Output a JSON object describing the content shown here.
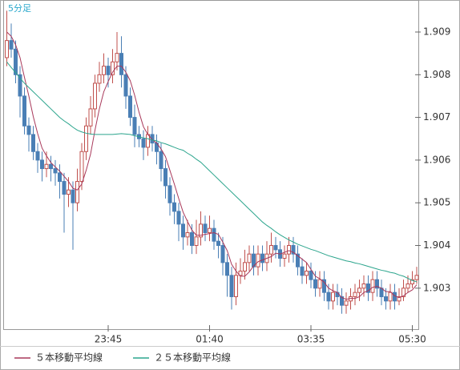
{
  "chart_data": {
    "type": "candlestick",
    "title": "5分足",
    "categories": [
      null,
      null,
      null,
      null,
      null,
      null,
      null,
      null,
      null,
      null,
      null,
      null,
      null,
      null,
      null,
      null,
      null,
      null,
      null,
      null,
      null,
      null,
      null,
      "23:45",
      null,
      null,
      null,
      null,
      null,
      null,
      null,
      null,
      null,
      null,
      null,
      null,
      null,
      null,
      null,
      null,
      null,
      null,
      null,
      null,
      null,
      null,
      "01:40",
      null,
      null,
      null,
      null,
      null,
      null,
      null,
      null,
      null,
      null,
      null,
      null,
      null,
      null,
      null,
      null,
      null,
      null,
      null,
      null,
      null,
      null,
      "03:35",
      null,
      null,
      null,
      null,
      null,
      null,
      null,
      null,
      null,
      null,
      null,
      null,
      null,
      null,
      null,
      null,
      null,
      null,
      null,
      null,
      null,
      null,
      "05:30",
      null
    ],
    "open": [
      1.9084,
      1.9088,
      1.9086,
      1.908,
      1.9075,
      1.9068,
      1.9066,
      1.9062,
      1.906,
      1.9058,
      1.9059,
      1.9058,
      1.9057,
      1.9055,
      1.9052,
      1.9053,
      1.905,
      1.9055,
      1.9062,
      1.9068,
      1.9072,
      1.9078,
      1.908,
      1.9082,
      1.908,
      1.9083,
      1.9085,
      1.908,
      1.9075,
      1.907,
      1.9066,
      1.9065,
      1.9063,
      1.9066,
      1.9064,
      1.9062,
      1.9058,
      1.9054,
      1.905,
      1.9048,
      1.9045,
      1.9042,
      1.9043,
      1.904,
      1.9042,
      1.9045,
      1.9043,
      1.9044,
      1.9041,
      1.904,
      1.9036,
      1.9033,
      1.9028,
      1.9033,
      1.9034,
      1.9036,
      1.9038,
      1.9035,
      1.9038,
      1.9036,
      1.9038,
      1.904,
      1.9039,
      1.9037,
      1.9038,
      1.904,
      1.9038,
      1.9035,
      1.9033,
      1.9034,
      1.9032,
      1.903,
      1.9032,
      1.9029,
      1.9027,
      1.9029,
      1.9028,
      1.9026,
      1.9027,
      1.9028,
      1.9029,
      1.903,
      1.9031,
      1.9029,
      1.9032,
      1.903,
      1.9028,
      1.9027,
      1.9029,
      1.9027,
      1.9028,
      1.903,
      1.9031,
      1.9032
    ],
    "high": [
      1.9095,
      1.9092,
      1.9088,
      1.9082,
      1.9077,
      1.907,
      1.9068,
      1.9064,
      1.9062,
      1.9062,
      1.9061,
      1.906,
      1.9059,
      1.9057,
      1.9056,
      1.9055,
      1.9058,
      1.9064,
      1.907,
      1.9075,
      1.908,
      1.9083,
      1.9085,
      1.9084,
      1.9086,
      1.909,
      1.9089,
      1.9082,
      1.9077,
      1.9073,
      1.9068,
      1.9067,
      1.9068,
      1.9068,
      1.9066,
      1.9064,
      1.906,
      1.9056,
      1.9052,
      1.905,
      1.9047,
      1.9046,
      1.9045,
      1.9046,
      1.9048,
      1.9047,
      1.9047,
      1.9046,
      1.9043,
      1.9042,
      1.9038,
      1.9035,
      1.9036,
      1.9037,
      1.9039,
      1.904,
      1.904,
      1.904,
      1.904,
      1.9041,
      1.9043,
      1.9042,
      1.9041,
      1.904,
      1.9042,
      1.9042,
      1.904,
      1.9037,
      1.9036,
      1.9036,
      1.9034,
      1.9034,
      1.9034,
      1.9031,
      1.9031,
      1.9031,
      1.903,
      1.9029,
      1.903,
      1.9031,
      1.9032,
      1.9033,
      1.9033,
      1.9034,
      1.9034,
      1.9032,
      1.903,
      1.9031,
      1.9031,
      1.903,
      1.9032,
      1.9033,
      1.9034,
      1.9035
    ],
    "low": [
      1.9082,
      1.9084,
      1.9078,
      1.907,
      1.9066,
      1.9062,
      1.906,
      1.9057,
      1.9055,
      1.9056,
      1.9055,
      1.9054,
      1.9051,
      1.9043,
      1.9049,
      1.9039,
      1.9048,
      1.9053,
      1.906,
      1.9066,
      1.907,
      1.9076,
      1.9078,
      1.9077,
      1.9078,
      1.9081,
      1.9077,
      1.9072,
      1.9068,
      1.9063,
      1.9063,
      1.906,
      1.9061,
      1.9062,
      1.9059,
      1.9055,
      1.9051,
      1.9047,
      1.9045,
      1.9041,
      1.9039,
      1.904,
      1.9038,
      1.9038,
      1.904,
      1.9041,
      1.9041,
      1.9039,
      1.9037,
      1.9033,
      1.9028,
      1.9025,
      1.9026,
      1.9031,
      1.9032,
      1.9034,
      1.9033,
      1.9033,
      1.9034,
      1.9034,
      1.9036,
      1.9037,
      1.9035,
      1.9035,
      1.9036,
      1.9036,
      1.9033,
      1.9031,
      1.9031,
      1.903,
      1.9028,
      1.9028,
      1.9027,
      1.9025,
      1.9025,
      1.9026,
      1.9024,
      1.9024,
      1.9025,
      1.9026,
      1.9027,
      1.9028,
      1.9027,
      1.9027,
      1.9028,
      1.9026,
      1.9025,
      1.9025,
      1.9025,
      1.9026,
      1.9027,
      1.9029,
      1.903,
      1.9031
    ],
    "close": [
      1.9088,
      1.9086,
      1.908,
      1.9075,
      1.9068,
      1.9066,
      1.9062,
      1.906,
      1.9058,
      1.9059,
      1.9058,
      1.9057,
      1.9055,
      1.9052,
      1.9053,
      1.905,
      1.9055,
      1.9062,
      1.9068,
      1.9072,
      1.9078,
      1.908,
      1.9082,
      1.908,
      1.9083,
      1.9085,
      1.908,
      1.9075,
      1.907,
      1.9066,
      1.9065,
      1.9063,
      1.9066,
      1.9064,
      1.9062,
      1.9058,
      1.9054,
      1.905,
      1.9048,
      1.9045,
      1.9042,
      1.9043,
      1.904,
      1.9042,
      1.9045,
      1.9043,
      1.9044,
      1.9041,
      1.904,
      1.9036,
      1.9033,
      1.9028,
      1.9033,
      1.9034,
      1.9036,
      1.9038,
      1.9035,
      1.9038,
      1.9036,
      1.9038,
      1.904,
      1.9039,
      1.9037,
      1.9038,
      1.904,
      1.9038,
      1.9035,
      1.9033,
      1.9034,
      1.9032,
      1.903,
      1.9032,
      1.9029,
      1.9027,
      1.9029,
      1.9028,
      1.9026,
      1.9027,
      1.9028,
      1.9029,
      1.903,
      1.9031,
      1.9029,
      1.9032,
      1.903,
      1.9028,
      1.9027,
      1.9029,
      1.9027,
      1.9028,
      1.903,
      1.9031,
      1.9032,
      1.9033
    ],
    "up_color": "#c0504d",
    "down_color": "#4a7fb5",
    "series": [
      {
        "name": "５本移動平均線",
        "color": "#a8385a",
        "values": [
          1.909,
          1.9089,
          1.9087,
          1.9084,
          1.90794,
          1.9075,
          1.90702,
          1.90662,
          1.90628,
          1.9061,
          1.90594,
          1.90584,
          1.90574,
          1.90562,
          1.9055,
          1.90534,
          1.9053,
          1.90544,
          1.90576,
          1.90614,
          1.9067,
          1.9072,
          1.9076,
          1.90784,
          1.90806,
          1.9082,
          1.9082,
          1.90806,
          1.90786,
          1.90752,
          1.90712,
          1.90678,
          1.9066,
          1.90648,
          1.9064,
          1.90626,
          1.90608,
          1.90576,
          1.90544,
          1.9051,
          1.90478,
          1.90456,
          1.90436,
          1.90424,
          1.90424,
          1.90426,
          1.90428,
          1.9043,
          1.90426,
          1.90408,
          1.90388,
          1.90356,
          1.9034,
          1.90328,
          1.90328,
          1.90338,
          1.90352,
          1.90362,
          1.90366,
          1.9037,
          1.90374,
          1.90382,
          1.9038,
          1.90384,
          1.90388,
          1.90384,
          1.90376,
          1.90368,
          1.9036,
          1.90344,
          1.90328,
          1.90322,
          1.90314,
          1.903,
          1.90294,
          1.9029,
          1.90278,
          1.90274,
          1.90276,
          1.90276,
          1.9028,
          1.9029,
          1.90294,
          1.90302,
          1.90304,
          1.903,
          1.90292,
          1.90292,
          1.90282,
          1.90278,
          1.90282,
          1.9029,
          1.90296,
          1.90308
        ]
      },
      {
        "name": "２５本移動平均線",
        "color": "#2ca58d",
        "values": [
          1.9083,
          1.90817,
          1.90805,
          1.90792,
          1.9078,
          1.9077,
          1.9076,
          1.9075,
          1.9074,
          1.9073,
          1.9072,
          1.9071,
          1.907,
          1.90692,
          1.90685,
          1.90677,
          1.9067,
          1.90666,
          1.90663,
          1.90661,
          1.9066,
          1.9066,
          1.9066,
          1.9066,
          1.9066,
          1.90661,
          1.90662,
          1.90661,
          1.9066,
          1.90657,
          1.90655,
          1.90652,
          1.9065,
          1.90647,
          1.90645,
          1.90641,
          1.90638,
          1.90634,
          1.9063,
          1.90626,
          1.90623,
          1.90616,
          1.9061,
          1.90602,
          1.90595,
          1.90585,
          1.90575,
          1.90565,
          1.90555,
          1.90545,
          1.90535,
          1.90525,
          1.90515,
          1.90505,
          1.90495,
          1.90485,
          1.90475,
          1.90465,
          1.90455,
          1.90447,
          1.9044,
          1.90432,
          1.90425,
          1.90419,
          1.90413,
          1.90408,
          1.90403,
          1.90399,
          1.90395,
          1.90391,
          1.90388,
          1.90384,
          1.9038,
          1.90376,
          1.90373,
          1.9037,
          1.90367,
          1.90364,
          1.90362,
          1.90359,
          1.90357,
          1.90354,
          1.90351,
          1.90348,
          1.90345,
          1.90342,
          1.9034,
          1.90337,
          1.90335,
          1.90331,
          1.90328,
          1.90323,
          1.90318,
          1.90315
        ]
      }
    ],
    "ylim": [
      1.90204,
      1.90975
    ],
    "yticks": [
      1.903,
      1.904,
      1.905,
      1.906,
      1.907,
      1.908,
      1.909
    ]
  }
}
